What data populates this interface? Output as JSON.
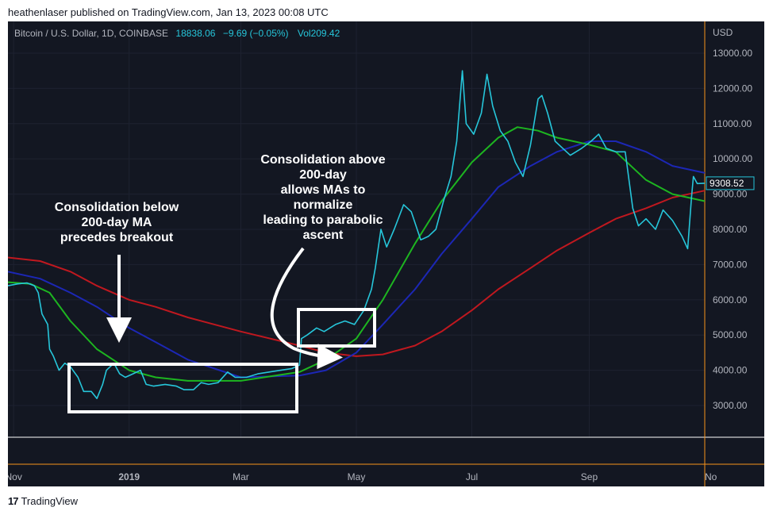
{
  "header": {
    "published_line": "heathenlaser published on TradingView.com, Jan 13, 2023 00:08 UTC"
  },
  "legend": {
    "symbol": "Bitcoin / U.S. Dollar, 1D, COINBASE",
    "close": "18838.06",
    "change": "−9.69 (−0.05%)",
    "volume_label": "Vol",
    "volume": "209.42"
  },
  "footer": {
    "logo_mark": "17",
    "brand": "TradingView"
  },
  "colors": {
    "background": "#131722",
    "price": "#26c6da",
    "ma_fast": "#1db520",
    "ma_mid": "#1c27b5",
    "ma_slow": "#c0181f",
    "annotation": "#ffffff",
    "axis_text": "#b2b5be",
    "separator": "#f7931a"
  },
  "chart_data": {
    "type": "line",
    "title": "Bitcoin / U.S. Dollar, 1D, COINBASE",
    "currency_label": "USD",
    "last_price_label": "9308.52",
    "y_ticks": [
      "13000.00",
      "12000.00",
      "11000.00",
      "10000.00",
      "9000.00",
      "8000.00",
      "7000.00",
      "6000.00",
      "5000.00",
      "4000.00",
      "3000.00"
    ],
    "x_ticks": [
      "Nov",
      "2019",
      "Mar",
      "May",
      "Jul",
      "Sep",
      "No"
    ],
    "ylim": [
      2100,
      13900
    ],
    "x_domain": [
      "2018-10-29",
      "2019-11-01"
    ],
    "series": [
      {
        "id": "price",
        "x": [
          "2018-10-29",
          "2018-11-03",
          "2018-11-08",
          "2018-11-12",
          "2018-11-14",
          "2018-11-16",
          "2018-11-19",
          "2018-11-20",
          "2018-11-22",
          "2018-11-25",
          "2018-11-28",
          "2018-12-01",
          "2018-12-05",
          "2018-12-08",
          "2018-12-12",
          "2018-12-15",
          "2018-12-18",
          "2018-12-20",
          "2018-12-24",
          "2018-12-27",
          "2018-12-30",
          "2019-01-03",
          "2019-01-07",
          "2019-01-10",
          "2019-01-14",
          "2019-01-20",
          "2019-01-26",
          "2019-01-30",
          "2019-02-04",
          "2019-02-08",
          "2019-02-12",
          "2019-02-17",
          "2019-02-22",
          "2019-02-26",
          "2019-03-04",
          "2019-03-10",
          "2019-03-16",
          "2019-03-22",
          "2019-03-28",
          "2019-04-01",
          "2019-04-02",
          "2019-04-05",
          "2019-04-10",
          "2019-04-14",
          "2019-04-20",
          "2019-04-25",
          "2019-04-30",
          "2019-05-05",
          "2019-05-09",
          "2019-05-11",
          "2019-05-14",
          "2019-05-17",
          "2019-05-21",
          "2019-05-26",
          "2019-05-30",
          "2019-06-04",
          "2019-06-08",
          "2019-06-12",
          "2019-06-16",
          "2019-06-20",
          "2019-06-23",
          "2019-06-26",
          "2019-06-28",
          "2019-07-02",
          "2019-07-06",
          "2019-07-09",
          "2019-07-12",
          "2019-07-16",
          "2019-07-20",
          "2019-07-24",
          "2019-07-28",
          "2019-08-01",
          "2019-08-05",
          "2019-08-07",
          "2019-08-10",
          "2019-08-14",
          "2019-08-18",
          "2019-08-22",
          "2019-08-28",
          "2019-09-02",
          "2019-09-06",
          "2019-09-10",
          "2019-09-15",
          "2019-09-20",
          "2019-09-24",
          "2019-09-27",
          "2019-10-01",
          "2019-10-06",
          "2019-10-10",
          "2019-10-15",
          "2019-10-20",
          "2019-10-23",
          "2019-10-25",
          "2019-10-26",
          "2019-10-28",
          "2019-11-01"
        ],
        "y": [
          6400,
          6450,
          6480,
          6400,
          6200,
          5600,
          5300,
          4600,
          4400,
          4000,
          4200,
          4100,
          3800,
          3400,
          3400,
          3200,
          3600,
          4000,
          4200,
          3900,
          3800,
          3900,
          4000,
          3600,
          3550,
          3600,
          3550,
          3450,
          3450,
          3650,
          3600,
          3650,
          3950,
          3800,
          3800,
          3900,
          3950,
          4000,
          4050,
          4150,
          4900,
          5000,
          5200,
          5100,
          5300,
          5400,
          5300,
          5700,
          6300,
          6900,
          8000,
          7500,
          8000,
          8700,
          8500,
          7700,
          7800,
          8000,
          8800,
          9500,
          10500,
          12500,
          11000,
          10700,
          11300,
          12400,
          11500,
          10800,
          10500,
          9900,
          9500,
          10400,
          11700,
          11800,
          11300,
          10500,
          10300,
          10100,
          10300,
          10500,
          10700,
          10300,
          10200,
          10200,
          8600,
          8100,
          8300,
          8000,
          8550,
          8250,
          7800,
          7450,
          8900,
          9500,
          9300,
          9308
        ]
      },
      {
        "id": "ma_fast",
        "x": [
          "2018-10-29",
          "2018-11-10",
          "2018-11-20",
          "2018-12-01",
          "2018-12-15",
          "2019-01-01",
          "2019-01-15",
          "2019-02-01",
          "2019-03-01",
          "2019-04-01",
          "2019-04-15",
          "2019-05-01",
          "2019-05-15",
          "2019-06-01",
          "2019-06-15",
          "2019-07-01",
          "2019-07-15",
          "2019-07-25",
          "2019-08-05",
          "2019-08-15",
          "2019-09-01",
          "2019-09-15",
          "2019-10-01",
          "2019-10-15",
          "2019-11-01"
        ],
        "y": [
          6500,
          6450,
          6200,
          5400,
          4600,
          4000,
          3800,
          3700,
          3700,
          3950,
          4300,
          4900,
          6000,
          7600,
          8800,
          9900,
          10600,
          10900,
          10800,
          10600,
          10400,
          10200,
          9400,
          9000,
          8800
        ]
      },
      {
        "id": "ma_mid",
        "x": [
          "2018-10-29",
          "2018-11-15",
          "2018-12-01",
          "2018-12-15",
          "2019-01-01",
          "2019-01-15",
          "2019-02-01",
          "2019-03-01",
          "2019-04-01",
          "2019-04-15",
          "2019-05-01",
          "2019-05-15",
          "2019-06-01",
          "2019-06-15",
          "2019-07-01",
          "2019-07-15",
          "2019-08-01",
          "2019-08-15",
          "2019-09-01",
          "2019-09-15",
          "2019-10-01",
          "2019-10-15",
          "2019-11-01"
        ],
        "y": [
          6800,
          6600,
          6200,
          5800,
          5200,
          4800,
          4300,
          3800,
          3850,
          4000,
          4500,
          5300,
          6300,
          7300,
          8300,
          9200,
          9800,
          10200,
          10500,
          10500,
          10200,
          9800,
          9600
        ]
      },
      {
        "id": "ma_slow",
        "x": [
          "2018-10-29",
          "2018-11-15",
          "2018-12-01",
          "2018-12-15",
          "2019-01-01",
          "2019-01-15",
          "2019-02-01",
          "2019-03-01",
          "2019-04-01",
          "2019-04-15",
          "2019-05-01",
          "2019-05-15",
          "2019-06-01",
          "2019-06-15",
          "2019-07-01",
          "2019-07-15",
          "2019-08-01",
          "2019-08-15",
          "2019-09-01",
          "2019-09-15",
          "2019-10-01",
          "2019-10-15",
          "2019-11-01"
        ],
        "y": [
          7200,
          7100,
          6800,
          6400,
          6000,
          5800,
          5500,
          5100,
          4700,
          4500,
          4400,
          4450,
          4700,
          5100,
          5700,
          6300,
          6900,
          7400,
          7900,
          8300,
          8600,
          8900,
          9100
        ]
      }
    ],
    "annotations": [
      {
        "lines": [
          "Consolidation below",
          "200-day MA",
          "precedes breakout"
        ]
      },
      {
        "lines": [
          "Consolidation above",
          "200-day",
          "allows MAs to",
          "normalize",
          "leading to parabolic",
          "ascent"
        ]
      }
    ]
  }
}
